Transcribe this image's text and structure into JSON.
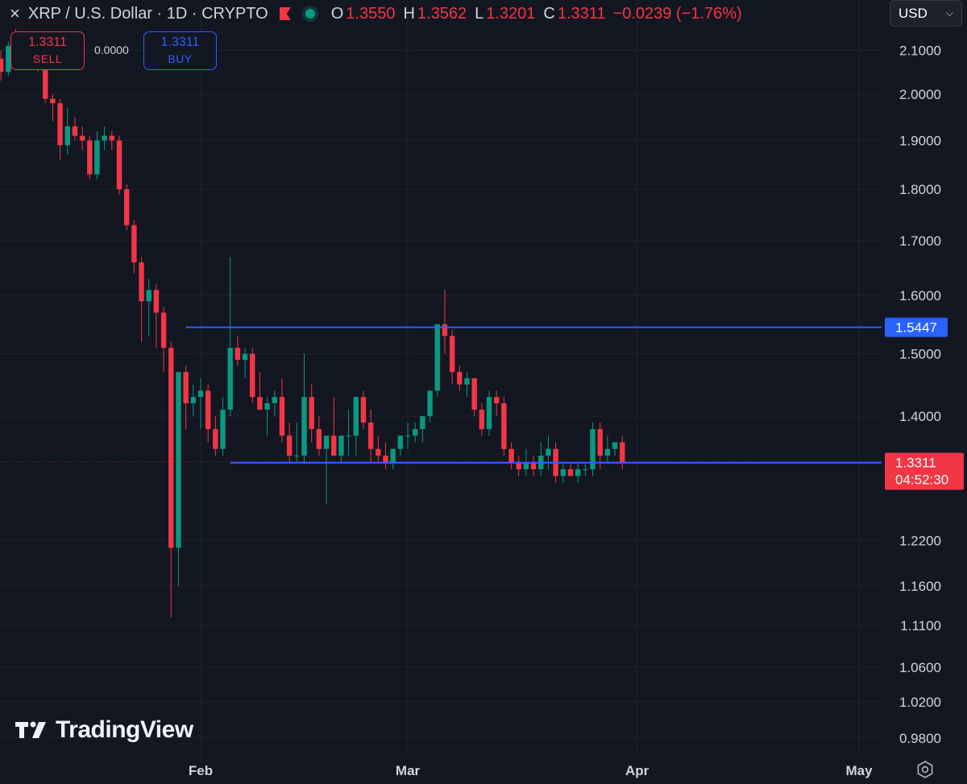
{
  "header": {
    "close_icon": "×",
    "symbol": "XRP / U.S. Dollar · 1D · CRYPTO",
    "open_label": "O",
    "open": "1.3550",
    "high_label": "H",
    "high": "1.3562",
    "low_label": "L",
    "low": "1.3201",
    "close_label": "C",
    "close": "1.3311",
    "change": "−0.0239 (−1.76%)"
  },
  "currency": {
    "label": "USD"
  },
  "trade": {
    "sell_price": "1.3311",
    "sell_label": "SELL",
    "spread": "0.0000",
    "buy_price": "1.3311",
    "buy_label": "BUY"
  },
  "logo": {
    "text": "TradingView"
  },
  "colors": {
    "up": "#089981",
    "down": "#f23645",
    "line": "#2962ff",
    "bg": "#131722",
    "grid": "#1f2330"
  },
  "chart_data": {
    "type": "candlestick",
    "scale": "log",
    "ylim": [
      0.96,
      2.22
    ],
    "y_ticks": [
      "2.1000",
      "2.0000",
      "1.9000",
      "1.8000",
      "1.7000",
      "1.6000",
      "1.5000",
      "1.4000",
      "1.2200",
      "1.1600",
      "1.1100",
      "1.0600",
      "1.0200",
      "0.9800"
    ],
    "x_ticks": [
      {
        "label": "Feb",
        "date": "2026-02-01"
      },
      {
        "label": "Mar",
        "date": "2026-03-01"
      },
      {
        "label": "Apr",
        "date": "2026-04-01"
      },
      {
        "label": "May",
        "date": "2026-05-01"
      }
    ],
    "x_start": "2026-01-01",
    "x_end": "2026-05-01",
    "ohlc": [
      [
        2.13,
        2.16,
        2.1,
        2.12
      ],
      [
        2.12,
        2.14,
        2.08,
        2.1
      ],
      [
        2.1,
        2.12,
        2.06,
        2.09
      ],
      [
        2.09,
        2.12,
        2.06,
        2.08
      ],
      [
        2.08,
        2.1,
        2.03,
        2.05
      ],
      [
        2.05,
        2.12,
        2.04,
        2.11
      ],
      [
        2.11,
        2.15,
        2.08,
        2.1
      ],
      [
        2.1,
        2.13,
        2.07,
        2.08
      ],
      [
        2.08,
        2.11,
        2.06,
        2.09
      ],
      [
        2.09,
        2.1,
        2.05,
        2.07
      ],
      [
        2.07,
        2.1,
        1.98,
        1.99
      ],
      [
        1.99,
        2.0,
        1.94,
        1.98
      ],
      [
        1.98,
        1.99,
        1.86,
        1.89
      ],
      [
        1.89,
        1.97,
        1.87,
        1.93
      ],
      [
        1.93,
        1.95,
        1.9,
        1.91
      ],
      [
        1.91,
        1.93,
        1.88,
        1.9
      ],
      [
        1.9,
        1.91,
        1.82,
        1.83
      ],
      [
        1.83,
        1.92,
        1.82,
        1.9
      ],
      [
        1.9,
        1.93,
        1.88,
        1.91
      ],
      [
        1.91,
        1.92,
        1.88,
        1.9
      ],
      [
        1.9,
        1.91,
        1.79,
        1.8
      ],
      [
        1.8,
        1.81,
        1.72,
        1.73
      ],
      [
        1.73,
        1.74,
        1.64,
        1.66
      ],
      [
        1.66,
        1.67,
        1.52,
        1.59
      ],
      [
        1.59,
        1.63,
        1.53,
        1.61
      ],
      [
        1.61,
        1.62,
        1.51,
        1.57
      ],
      [
        1.57,
        1.58,
        1.47,
        1.51
      ],
      [
        1.51,
        1.52,
        1.12,
        1.21
      ],
      [
        1.21,
        1.47,
        1.16,
        1.47
      ],
      [
        1.47,
        1.48,
        1.38,
        1.42
      ],
      [
        1.42,
        1.45,
        1.4,
        1.43
      ],
      [
        1.43,
        1.46,
        1.38,
        1.44
      ],
      [
        1.44,
        1.45,
        1.36,
        1.38
      ],
      [
        1.38,
        1.4,
        1.34,
        1.35
      ],
      [
        1.35,
        1.43,
        1.34,
        1.41
      ],
      [
        1.41,
        1.67,
        1.4,
        1.51
      ],
      [
        1.51,
        1.53,
        1.48,
        1.49
      ],
      [
        1.49,
        1.51,
        1.46,
        1.5
      ],
      [
        1.5,
        1.51,
        1.42,
        1.43
      ],
      [
        1.43,
        1.47,
        1.41,
        1.41
      ],
      [
        1.41,
        1.43,
        1.37,
        1.42
      ],
      [
        1.42,
        1.44,
        1.4,
        1.43
      ],
      [
        1.43,
        1.46,
        1.36,
        1.37
      ],
      [
        1.37,
        1.39,
        1.33,
        1.34
      ],
      [
        1.34,
        1.39,
        1.33,
        1.34
      ],
      [
        1.34,
        1.5,
        1.33,
        1.43
      ],
      [
        1.43,
        1.45,
        1.36,
        1.38
      ],
      [
        1.38,
        1.4,
        1.34,
        1.35
      ],
      [
        1.35,
        1.37,
        1.27,
        1.37
      ],
      [
        1.37,
        1.43,
        1.34,
        1.34
      ],
      [
        1.34,
        1.37,
        1.33,
        1.37
      ],
      [
        1.37,
        1.41,
        1.34,
        1.37
      ],
      [
        1.37,
        1.43,
        1.34,
        1.43
      ],
      [
        1.43,
        1.44,
        1.38,
        1.39
      ],
      [
        1.39,
        1.41,
        1.33,
        1.35
      ],
      [
        1.35,
        1.37,
        1.33,
        1.34
      ],
      [
        1.34,
        1.36,
        1.32,
        1.33
      ],
      [
        1.33,
        1.35,
        1.32,
        1.35
      ],
      [
        1.35,
        1.37,
        1.34,
        1.37
      ],
      [
        1.37,
        1.39,
        1.35,
        1.37
      ],
      [
        1.37,
        1.39,
        1.36,
        1.38
      ],
      [
        1.38,
        1.4,
        1.36,
        1.4
      ],
      [
        1.4,
        1.44,
        1.39,
        1.44
      ],
      [
        1.44,
        1.55,
        1.43,
        1.55
      ],
      [
        1.55,
        1.61,
        1.5,
        1.53
      ],
      [
        1.53,
        1.54,
        1.45,
        1.47
      ],
      [
        1.47,
        1.48,
        1.44,
        1.45
      ],
      [
        1.45,
        1.47,
        1.43,
        1.46
      ],
      [
        1.46,
        1.46,
        1.4,
        1.41
      ],
      [
        1.41,
        1.42,
        1.37,
        1.38
      ],
      [
        1.38,
        1.44,
        1.37,
        1.43
      ],
      [
        1.43,
        1.44,
        1.4,
        1.42
      ],
      [
        1.42,
        1.43,
        1.34,
        1.35
      ],
      [
        1.35,
        1.36,
        1.32,
        1.33
      ],
      [
        1.33,
        1.34,
        1.31,
        1.32
      ],
      [
        1.32,
        1.35,
        1.31,
        1.33
      ],
      [
        1.33,
        1.34,
        1.31,
        1.32
      ],
      [
        1.32,
        1.36,
        1.31,
        1.34
      ],
      [
        1.34,
        1.37,
        1.32,
        1.35
      ],
      [
        1.35,
        1.36,
        1.3,
        1.31
      ],
      [
        1.31,
        1.33,
        1.3,
        1.32
      ],
      [
        1.32,
        1.33,
        1.31,
        1.31
      ],
      [
        1.31,
        1.33,
        1.3,
        1.32
      ],
      [
        1.32,
        1.33,
        1.31,
        1.32
      ],
      [
        1.32,
        1.39,
        1.31,
        1.38
      ],
      [
        1.38,
        1.39,
        1.32,
        1.34
      ],
      [
        1.34,
        1.37,
        1.33,
        1.35
      ],
      [
        1.35,
        1.36,
        1.34,
        1.36
      ],
      [
        1.36,
        1.37,
        1.32,
        1.33
      ]
    ],
    "horizontal_lines": [
      {
        "value": 1.5447,
        "label": "1.5447",
        "start": "2026-01-30"
      },
      {
        "value": 1.3295,
        "label": "1.3295",
        "start": "2026-02-05"
      }
    ],
    "last_price": {
      "value": 1.3311,
      "label": "1.3311",
      "countdown": "04:52:30"
    }
  }
}
